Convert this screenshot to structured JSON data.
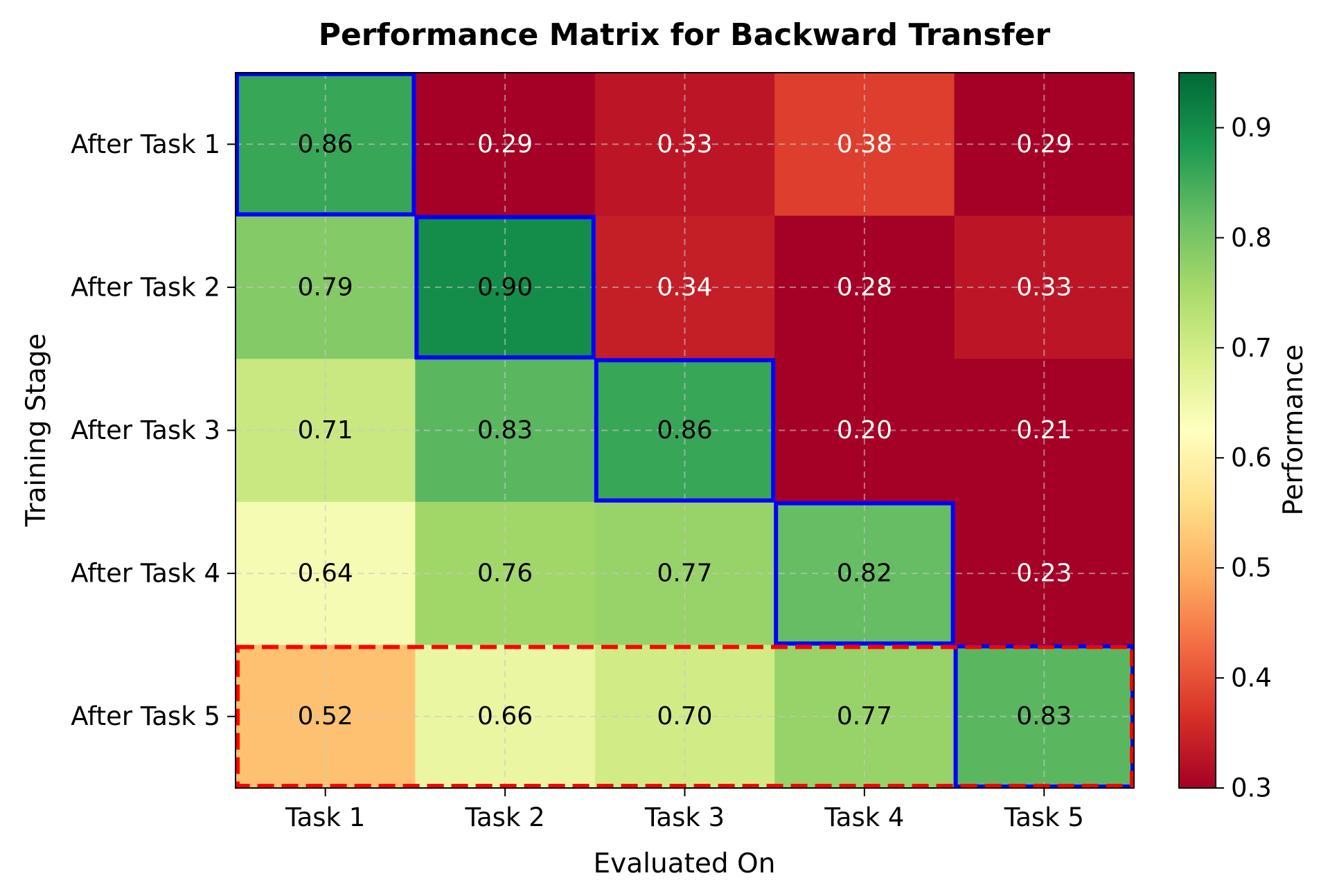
{
  "chart_data": {
    "type": "heatmap",
    "title": "Performance Matrix for Backward Transfer",
    "xlabel": "Evaluated On",
    "ylabel": "Training Stage",
    "x_categories": [
      "Task 1",
      "Task 2",
      "Task 3",
      "Task 4",
      "Task 5"
    ],
    "y_categories": [
      "After Task 1",
      "After Task 2",
      "After Task 3",
      "After Task 4",
      "After Task 5"
    ],
    "values": [
      [
        0.86,
        0.29,
        0.33,
        0.38,
        0.29
      ],
      [
        0.79,
        0.9,
        0.34,
        0.28,
        0.33
      ],
      [
        0.71,
        0.83,
        0.86,
        0.2,
        0.21
      ],
      [
        0.64,
        0.76,
        0.77,
        0.82,
        0.23
      ],
      [
        0.52,
        0.66,
        0.7,
        0.77,
        0.83
      ]
    ],
    "colormap": "RdYlGn",
    "vmin": 0.3,
    "vmax": 0.95,
    "colorbar": {
      "label": "Performance",
      "ticks": [
        "0.3",
        "0.4",
        "0.5",
        "0.6",
        "0.7",
        "0.8",
        "0.9"
      ]
    },
    "grid": true,
    "highlights": {
      "diagonal_outline_color": "#0000ff",
      "final_row_outline_color": "#ff0000"
    }
  }
}
